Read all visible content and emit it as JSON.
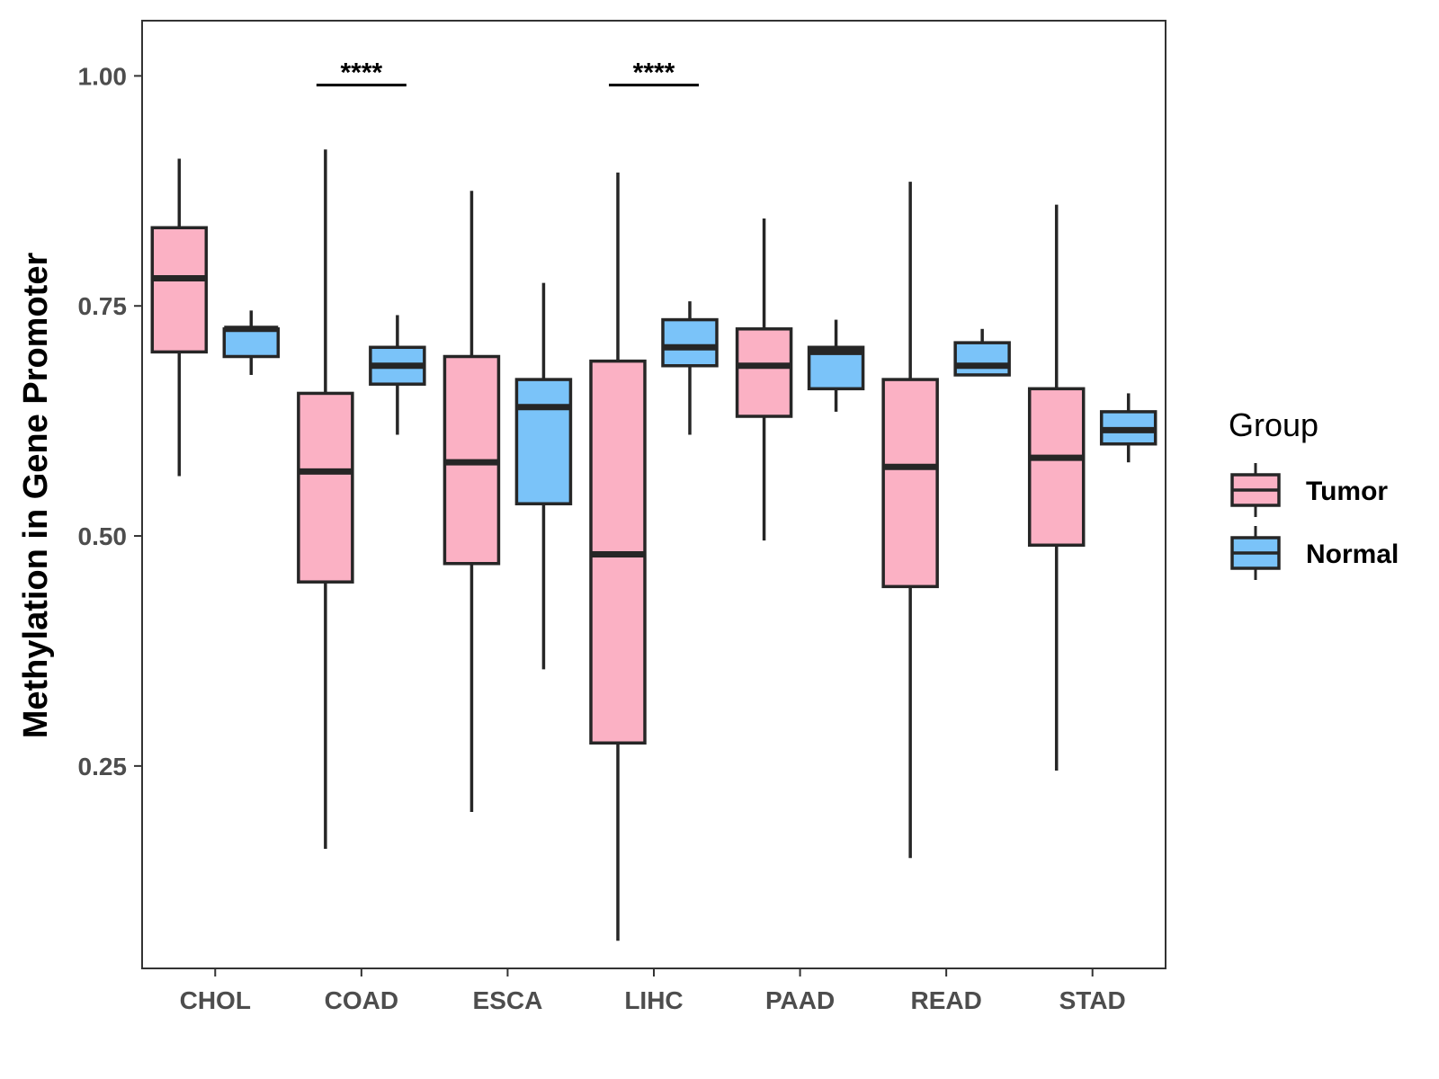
{
  "chart_data": {
    "type": "boxplot",
    "title": "",
    "xlabel": "",
    "ylabel": "Methylation in Gene Promoter",
    "ylim": [
      0.03,
      1.06
    ],
    "yticks": [
      "0.25",
      "0.50",
      "0.75",
      "1.00"
    ],
    "categories": [
      "CHOL",
      "COAD",
      "ESCA",
      "LIHC",
      "PAAD",
      "READ",
      "STAD"
    ],
    "legend": {
      "title": "Group",
      "position": "right",
      "entries": [
        {
          "name": "Tumor",
          "color": "#FBB1C4"
        },
        {
          "name": "Normal",
          "color": "#7AC3F9"
        }
      ]
    },
    "series": [
      {
        "name": "Tumor",
        "color": "#FBB1C4",
        "boxes": [
          {
            "category": "CHOL",
            "min": 0.565,
            "q1": 0.7,
            "median": 0.78,
            "q3": 0.835,
            "max": 0.91
          },
          {
            "category": "COAD",
            "min": 0.16,
            "q1": 0.45,
            "median": 0.57,
            "q3": 0.655,
            "max": 0.92
          },
          {
            "category": "ESCA",
            "min": 0.2,
            "q1": 0.47,
            "median": 0.58,
            "q3": 0.695,
            "max": 0.875
          },
          {
            "category": "LIHC",
            "min": 0.06,
            "q1": 0.275,
            "median": 0.48,
            "q3": 0.69,
            "max": 0.895
          },
          {
            "category": "PAAD",
            "min": 0.495,
            "q1": 0.63,
            "median": 0.685,
            "q3": 0.725,
            "max": 0.845
          },
          {
            "category": "READ",
            "min": 0.15,
            "q1": 0.445,
            "median": 0.575,
            "q3": 0.67,
            "max": 0.885
          },
          {
            "category": "STAD",
            "min": 0.245,
            "q1": 0.49,
            "median": 0.585,
            "q3": 0.66,
            "max": 0.86
          }
        ]
      },
      {
        "name": "Normal",
        "color": "#7AC3F9",
        "boxes": [
          {
            "category": "CHOL",
            "min": 0.675,
            "q1": 0.695,
            "median": 0.725,
            "q3": 0.725,
            "max": 0.745
          },
          {
            "category": "COAD",
            "min": 0.61,
            "q1": 0.665,
            "median": 0.685,
            "q3": 0.705,
            "max": 0.74
          },
          {
            "category": "ESCA",
            "min": 0.355,
            "q1": 0.535,
            "median": 0.64,
            "q3": 0.67,
            "max": 0.775
          },
          {
            "category": "LIHC",
            "min": 0.61,
            "q1": 0.685,
            "median": 0.705,
            "q3": 0.735,
            "max": 0.755
          },
          {
            "category": "PAAD",
            "min": 0.635,
            "q1": 0.66,
            "median": 0.7,
            "q3": 0.705,
            "max": 0.735
          },
          {
            "category": "READ",
            "min": 0.675,
            "q1": 0.675,
            "median": 0.685,
            "q3": 0.71,
            "max": 0.725
          },
          {
            "category": "STAD",
            "min": 0.58,
            "q1": 0.6,
            "median": 0.615,
            "q3": 0.635,
            "max": 0.655
          }
        ]
      }
    ],
    "annotations": [
      {
        "category": "COAD",
        "label": "****",
        "y": 0.99
      },
      {
        "category": "LIHC",
        "label": "****",
        "y": 0.99
      }
    ]
  }
}
